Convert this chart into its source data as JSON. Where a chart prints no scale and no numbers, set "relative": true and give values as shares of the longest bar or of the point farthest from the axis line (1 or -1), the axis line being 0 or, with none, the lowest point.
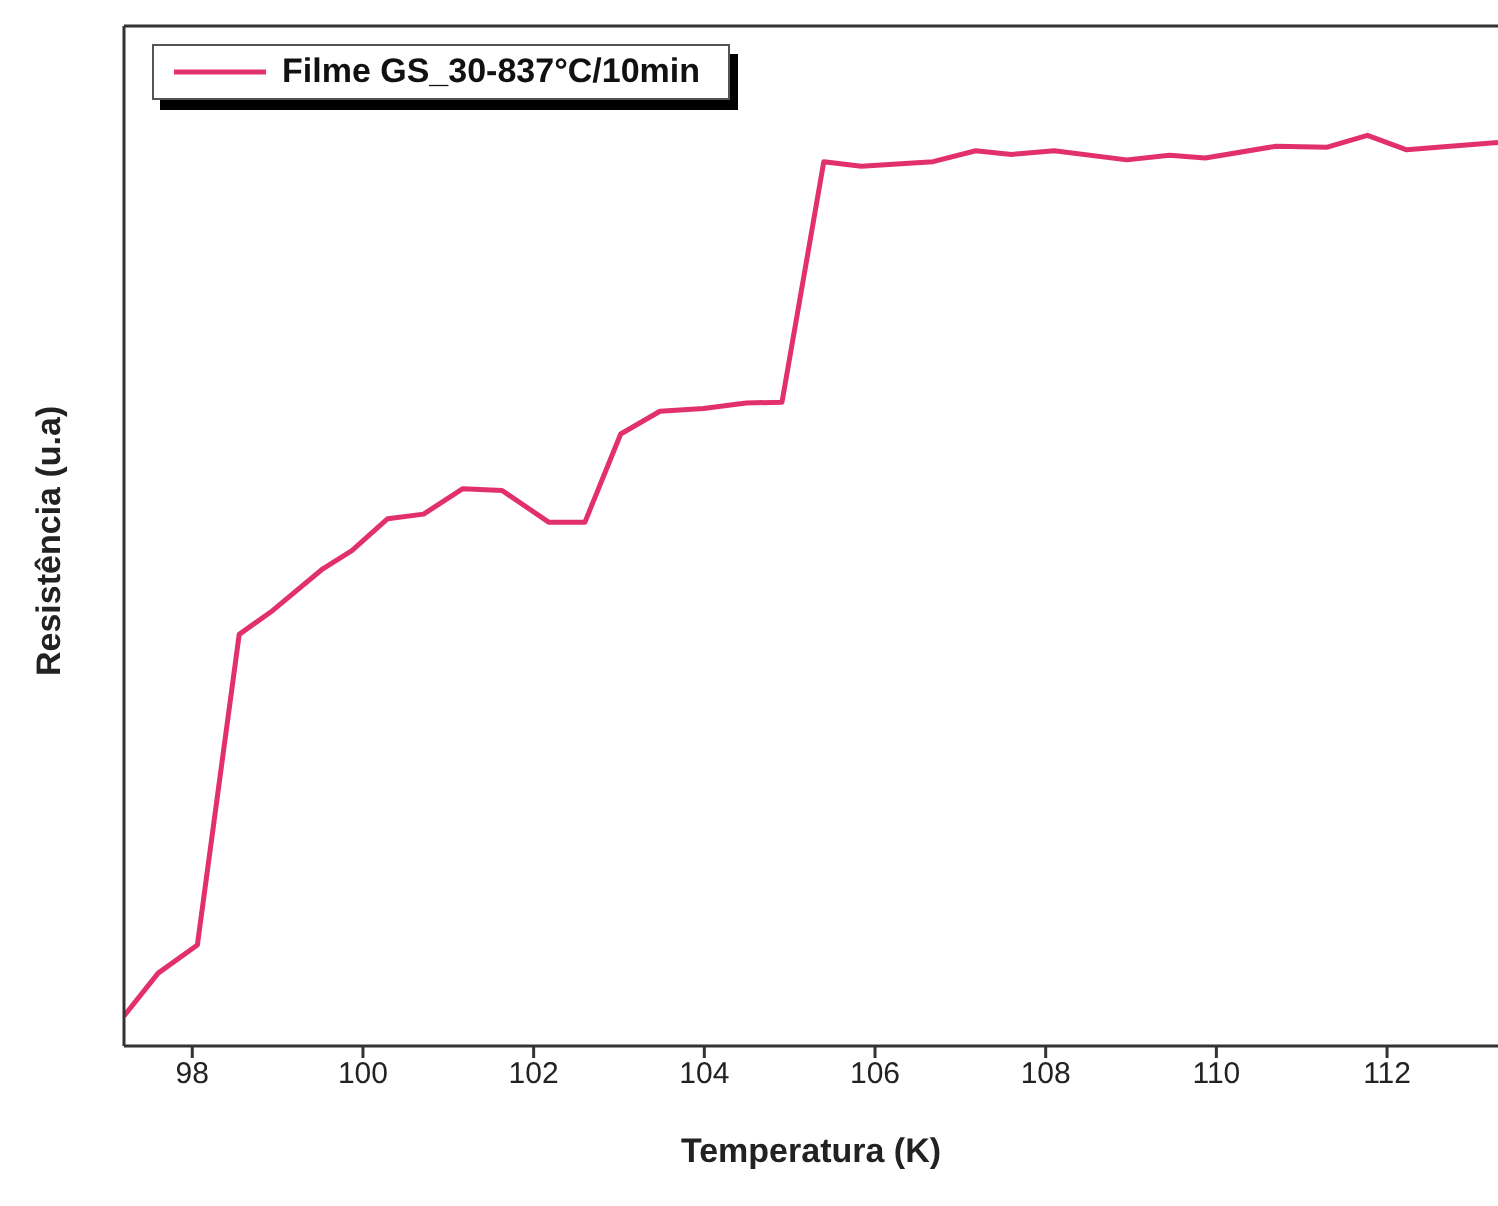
{
  "chart_data": {
    "type": "line",
    "xlabel": "Temperatura (K)",
    "ylabel": "Resistência (u.a)",
    "relative": true,
    "legend": "top left",
    "marker": "none",
    "line_style": "solid",
    "grid": false,
    "xlim": [
      97.2,
      113.3
    ],
    "xticks": [
      98,
      100,
      102,
      104,
      106,
      108,
      110,
      112
    ],
    "x": [
      97.2,
      97.6,
      98.06,
      98.55,
      98.94,
      99.53,
      99.87,
      100.29,
      100.71,
      101.17,
      101.63,
      102.18,
      102.6,
      103.02,
      103.48,
      103.99,
      104.49,
      104.91,
      105.4,
      105.84,
      106.68,
      107.18,
      107.6,
      108.1,
      108.95,
      109.45,
      109.87,
      110.7,
      111.3,
      111.77,
      112.23,
      112.74,
      113.3
    ],
    "series": [
      {
        "name": "Filme GS_30-837°C/10min",
        "color": "#e2306e",
        "values": [
          0.033,
          0.08,
          0.111,
          0.452,
          0.478,
          0.524,
          0.544,
          0.579,
          0.584,
          0.612,
          0.61,
          0.575,
          0.575,
          0.672,
          0.697,
          0.7,
          0.706,
          0.707,
          0.971,
          0.966,
          0.971,
          0.983,
          0.979,
          0.983,
          0.973,
          0.978,
          0.975,
          0.988,
          0.987,
          1,
          0.984,
          0.988,
          0.992
        ]
      }
    ]
  }
}
